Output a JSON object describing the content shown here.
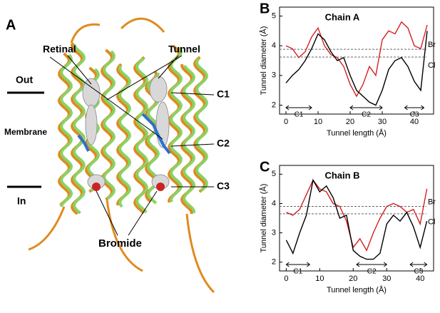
{
  "panel_a": {
    "label": "A",
    "retinal": "Retinal",
    "tunnel": "Tunnel",
    "out": "Out",
    "membrane": "Membrane",
    "in": "In",
    "c1": "C1",
    "c2": "C2",
    "c3": "C3",
    "bromide": "Bromide"
  },
  "chart_data": [
    {
      "type": "line",
      "panel_label": "B",
      "title": "Chain A",
      "x_label": "Tunnel length (Å)",
      "y_label": "Tunnel diameter (Å)",
      "x": [
        0,
        2,
        4,
        6,
        8,
        10,
        12,
        14,
        16,
        18,
        20,
        22,
        24,
        26,
        28,
        30,
        32,
        34,
        36,
        38,
        40,
        42,
        44
      ],
      "series": [
        {
          "name": "Br",
          "color": "#d62020",
          "threshold": 3.88,
          "values": [
            4.0,
            3.9,
            3.6,
            3.8,
            4.3,
            4.6,
            4.0,
            3.7,
            3.6,
            3.3,
            2.7,
            2.3,
            2.7,
            3.3,
            3.0,
            4.2,
            4.5,
            4.4,
            4.8,
            4.6,
            4.0,
            3.9,
            4.7
          ]
        },
        {
          "name": "Cl",
          "color": "#000000",
          "threshold": 3.62,
          "values": [
            2.75,
            3.0,
            3.2,
            3.5,
            3.9,
            4.4,
            4.2,
            3.8,
            3.5,
            3.6,
            3.0,
            2.5,
            2.3,
            2.1,
            2.0,
            2.5,
            3.2,
            3.5,
            3.6,
            3.3,
            2.8,
            2.5,
            4.5
          ]
        }
      ],
      "regions": [
        {
          "label": "C1",
          "start": 0,
          "end": 8
        },
        {
          "label": "C2",
          "start": 20,
          "end": 30
        },
        {
          "label": "C3",
          "start": 37,
          "end": 43
        }
      ],
      "xlim": [
        -2,
        46
      ],
      "xticks": [
        0,
        10,
        20,
        30,
        40
      ],
      "ylim": [
        1.7,
        5.3
      ],
      "yticks": [
        2,
        3,
        4,
        5
      ]
    },
    {
      "type": "line",
      "panel_label": "C",
      "title": "Chain B",
      "x_label": "Tunnel length (Å)",
      "y_label": "Tunnel diameter (Å)",
      "x": [
        0,
        2,
        4,
        6,
        8,
        10,
        12,
        14,
        16,
        18,
        20,
        22,
        24,
        26,
        28,
        30,
        32,
        34,
        36,
        38,
        40,
        42
      ],
      "series": [
        {
          "name": "Br",
          "color": "#d62020",
          "threshold": 3.9,
          "values": [
            3.7,
            3.6,
            3.8,
            4.3,
            4.8,
            4.5,
            4.4,
            4.0,
            3.9,
            3.4,
            2.5,
            2.8,
            2.4,
            3.0,
            3.5,
            3.9,
            4.0,
            3.9,
            3.7,
            3.8,
            3.3,
            4.5
          ]
        },
        {
          "name": "Cl",
          "color": "#000000",
          "threshold": 3.65,
          "values": [
            2.75,
            2.3,
            3.0,
            3.6,
            4.8,
            4.4,
            4.6,
            4.2,
            3.5,
            3.6,
            2.4,
            2.2,
            2.1,
            2.1,
            2.3,
            3.3,
            3.6,
            3.4,
            3.7,
            3.2,
            2.5,
            3.4
          ]
        }
      ],
      "regions": [
        {
          "label": "C1",
          "start": 0,
          "end": 7
        },
        {
          "label": "C2",
          "start": 21,
          "end": 30
        },
        {
          "label": "C3",
          "start": 37,
          "end": 42
        }
      ],
      "xlim": [
        -2,
        44
      ],
      "xticks": [
        0,
        10,
        20,
        30,
        40
      ],
      "ylim": [
        1.7,
        5.3
      ],
      "yticks": [
        2,
        3,
        4,
        5
      ]
    }
  ]
}
